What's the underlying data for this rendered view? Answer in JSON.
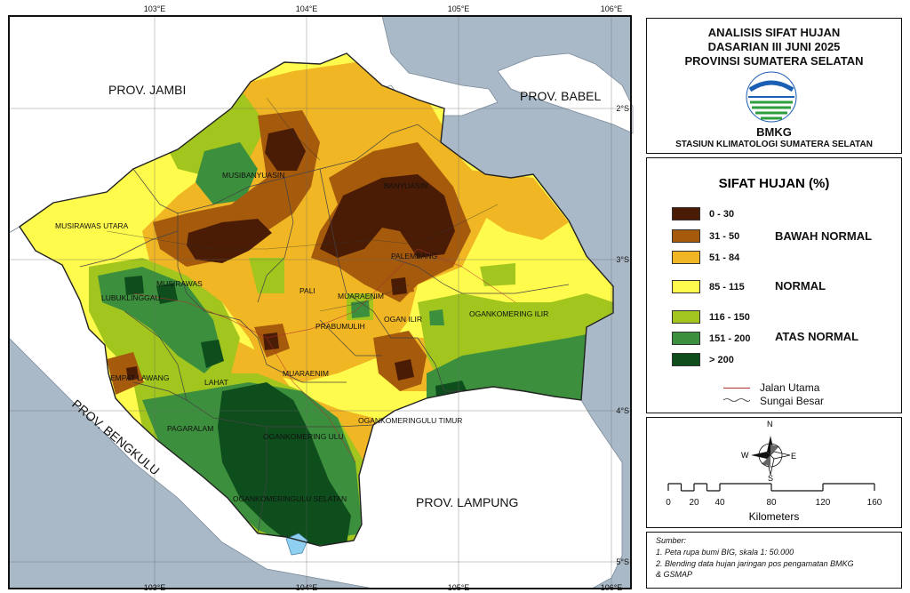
{
  "title": {
    "line1": "ANALISIS SIFAT HUJAN",
    "line2": "DASARIAN III JUNI 2025",
    "line3": "PROVINSI SUMATERA SELATAN",
    "agency": "BMKG",
    "station": "STASIUN KLIMATOLOGI SUMATERA SELATAN"
  },
  "graticule": {
    "lon_labels": [
      "103°E",
      "104°E",
      "105°E",
      "106°E"
    ],
    "lat_labels": [
      "2°S",
      "3°S",
      "4°S",
      "5°S"
    ]
  },
  "neighbors": {
    "jambi": "PROV. JAMBI",
    "babel": "PROV. BABEL",
    "bengkulu": "PROV. BENGKULU",
    "lampung": "PROV. LAMPUNG"
  },
  "regencies": {
    "musi_banyuasin": "MUSIBANYUASIN",
    "banyuasin": "BANYUASIN",
    "musi_rawas_utara": "MUSIRAWAS UTARA",
    "palembang": "PALEMBANG",
    "lubuklinggau": "LUBUKLINGGAU",
    "musi_rawas": "MUSIRAWAS",
    "pali": "PALI",
    "muara_enim_north": "MUARAENIM",
    "ogan_ilir": "OGAN ILIR",
    "prabumulih": "PRABUMULIH",
    "oku_ilir": "OGANKOMERING ILIR",
    "empat_lawang": "EMPAT LAWANG",
    "lahat": "LAHAT",
    "muara_enim": "MUARAENIM",
    "pagaralam": "PAGARALAM",
    "oku_timur": "OGANKOMERINGULU TIMUR",
    "oku": "OGANKOMERING ULU",
    "oku_selatan": "OGANKOMERINGULU SELATAN"
  },
  "legend": {
    "heading": "SIFAT HUJAN (%)",
    "classes": [
      {
        "label": "0 - 30",
        "color": "#4a1c06"
      },
      {
        "label": "31 - 50",
        "color": "#a55a0c"
      },
      {
        "label": "51 - 84",
        "color": "#f0b624"
      },
      {
        "label": "85 - 115",
        "color": "#fffb4c"
      },
      {
        "label": "116 - 150",
        "color": "#a2c61e"
      },
      {
        "label": "151 - 200",
        "color": "#3c8f3c"
      },
      {
        "label": "> 200",
        "color": "#0e4d1c"
      }
    ],
    "categories": {
      "below": "BAWAH NORMAL",
      "normal": "NORMAL",
      "above": "ATAS NORMAL"
    },
    "lines": {
      "road": "Jalan Utama",
      "river": "Sungai Besar"
    }
  },
  "compass": {
    "n": "N",
    "s": "S",
    "e": "E",
    "w": "W"
  },
  "scalebar": {
    "ticks": [
      "0",
      "20",
      "40",
      "80",
      "120",
      "160"
    ],
    "tick_values": [
      0,
      20,
      40,
      80,
      120,
      160
    ],
    "unit": "Kilometers"
  },
  "source": {
    "heading": "Sumber:",
    "line1": "1. Peta rupa bumi BIG, skala 1: 50.000",
    "line2": "2. Blending data hujan jaringan pos pengamatan BMKG",
    "line3": "& GSMAP"
  },
  "colors": {
    "sea": "#a9b9c8",
    "land_outside": "#ffffff",
    "road": "#b03030",
    "river": "#333333"
  }
}
